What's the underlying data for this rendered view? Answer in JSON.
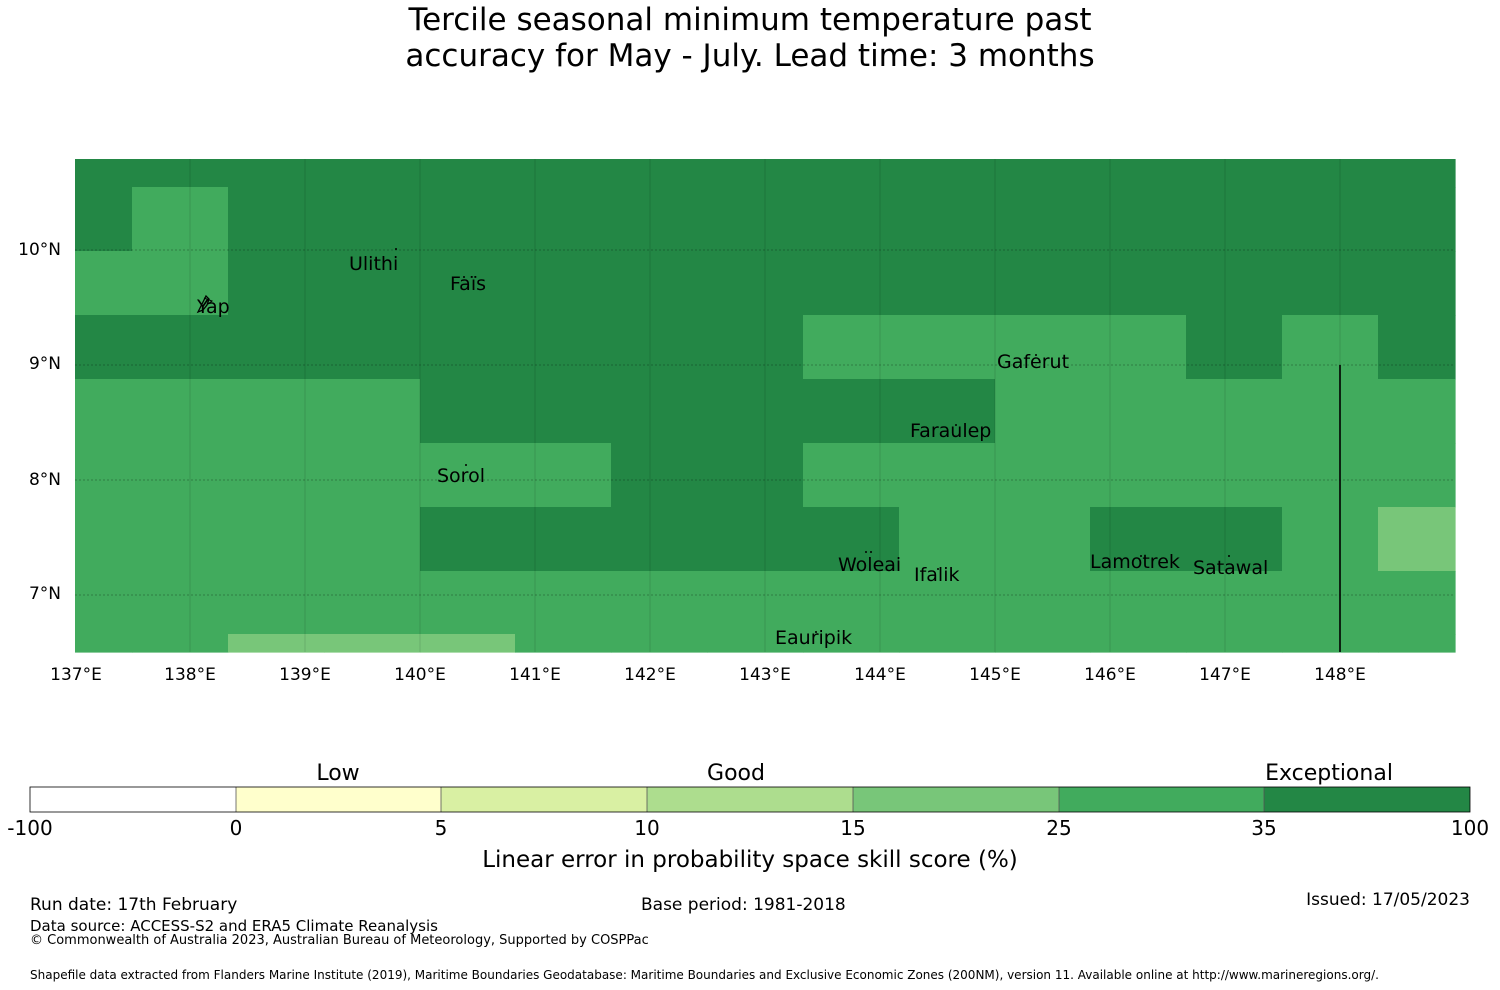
{
  "title": {
    "line1": "Tercile seasonal minimum temperature past",
    "line2": "accuracy for May - July. Lead time: 3 months"
  },
  "map": {
    "lon_range": [
      137,
      149
    ],
    "lat_range": [
      6.5,
      10.8
    ],
    "lat_labels": [
      "10°N",
      "9°N",
      "8°N",
      "7°N"
    ],
    "lon_labels": [
      "137°E",
      "138°E",
      "139°E",
      "140°E",
      "141°E",
      "142°E",
      "143°E",
      "144°E",
      "145°E",
      "146°E",
      "147°E",
      "148°E"
    ],
    "skill_colors": {
      "exceptional": "#238745",
      "good_high": "#41ab5d",
      "good_low": "#78c679"
    },
    "places": [
      {
        "name": "Ulithi",
        "lon": 139.75,
        "lat": 10.0
      },
      {
        "name": "Faïs",
        "lon": 140.52,
        "lat": 9.77
      },
      {
        "name": "Yap",
        "lon": 138.12,
        "lat": 9.52
      },
      {
        "name": "Gaferut",
        "lon": 145.37,
        "lat": 9.23
      },
      {
        "name": "Faraulep",
        "lon": 144.52,
        "lat": 8.6
      },
      {
        "name": "Sorol",
        "lon": 140.39,
        "lat": 8.13
      },
      {
        "name": "Woleai",
        "lon": 143.9,
        "lat": 7.35
      },
      {
        "name": "Ifalik",
        "lon": 144.45,
        "lat": 7.25
      },
      {
        "name": "Lamotrek",
        "lon": 146.37,
        "lat": 7.5
      },
      {
        "name": "Satawal",
        "lon": 147.03,
        "lat": 7.36
      },
      {
        "name": "Eauripik",
        "lon": 143.04,
        "lat": 6.69
      }
    ]
  },
  "colorbar": {
    "band_labels": [
      "Low",
      "Good",
      "Exceptional"
    ],
    "ticks": [
      "-100",
      "0",
      "5",
      "10",
      "15",
      "25",
      "35",
      "100"
    ],
    "colors": [
      "#ffffff",
      "#ffffcc",
      "#d9f0a3",
      "#addd8e",
      "#78c679",
      "#41ab5d",
      "#238745"
    ],
    "title": "Linear error in probability space skill score (%)"
  },
  "footer": {
    "run_date": "Run date: 17th February",
    "base_period": "Base period: 1981-2018",
    "issued": "Issued: 17/05/2023",
    "data_source": "Data source: ACCESS-S2 and ERA5 Climate Reanalysis",
    "copyright": "© Commonwealth of Australia 2023, Australian Bureau of Meteorology, Supported by COSPPac",
    "shapefile": "Shapefile data extracted from Flanders Marine Institute (2019), Maritime Boundaries Geodatabase: Maritime Boundaries and Exclusive Economic Zones (200NM), version 11. Available online at http://www.marineregions.org/."
  }
}
